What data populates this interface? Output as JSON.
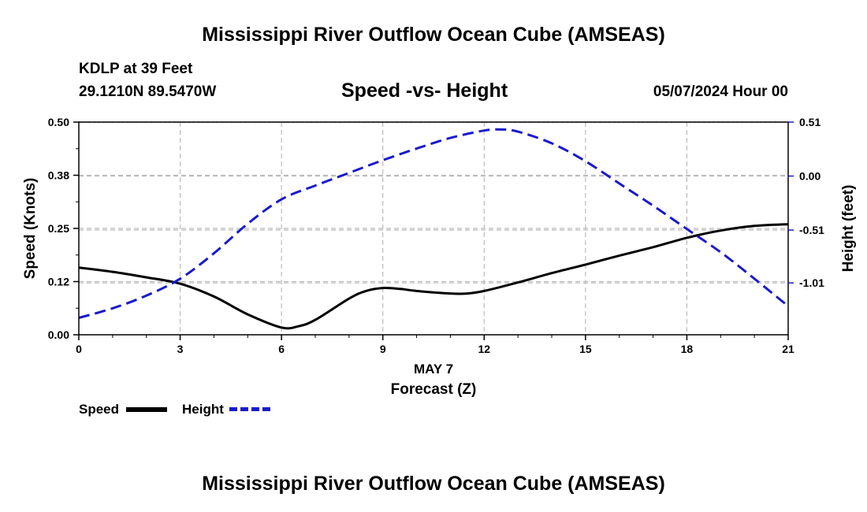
{
  "header": {
    "title": "Mississippi River Outflow Ocean Cube (AMSEAS)",
    "station": "KDLP at 39 Feet",
    "coords": "29.1210N  89.5470W",
    "subtitle": "Speed -vs- Height",
    "datetime": "05/07/2024 Hour 00",
    "footer_title": "Mississippi River Outflow Ocean Cube (AMSEAS)"
  },
  "legend": {
    "speed_label": "Speed",
    "height_label": "Height"
  },
  "colors": {
    "speed": "#000000",
    "height": "#1a1acc",
    "grid": "#bbbbbb"
  },
  "chart_data": {
    "type": "line",
    "title": "Speed -vs- Height",
    "xlabel": "Forecast (Z)",
    "xlabel_date": "MAY 7",
    "ylabel": "Speed (Knots)",
    "y2label": "Height (feet)",
    "xlim": [
      0,
      21
    ],
    "ylim": [
      0,
      0.5
    ],
    "y2lim": [
      -1.5,
      0.51
    ],
    "x_ticks": [
      0,
      3,
      6,
      9,
      12,
      15,
      18,
      21
    ],
    "x_tick_labels": [
      "0",
      "3",
      "6",
      "9",
      "12",
      "15",
      "18",
      "21"
    ],
    "y_ticks": [
      0,
      0.125,
      0.25,
      0.375,
      0.5
    ],
    "y_tick_labels": [
      "0.00",
      "0.12",
      "0.25",
      "0.38",
      "0.50"
    ],
    "y2_ticks": [
      0.51,
      0.0,
      -0.51,
      -1.01
    ],
    "y2_tick_labels": [
      "0.51",
      "0.00",
      "-0.51",
      "-1.01"
    ],
    "series": [
      {
        "name": "Speed",
        "axis": "left",
        "style": "solid",
        "x": [
          0,
          1,
          2,
          3,
          4,
          5,
          6,
          6.5,
          7,
          8,
          8.5,
          9,
          9.5,
          10,
          11,
          11.5,
          12,
          13,
          14,
          15,
          16,
          17,
          18,
          19,
          20,
          21
        ],
        "values": [
          0.158,
          0.148,
          0.135,
          0.12,
          0.09,
          0.048,
          0.017,
          0.02,
          0.035,
          0.085,
          0.103,
          0.11,
          0.108,
          0.103,
          0.097,
          0.097,
          0.103,
          0.123,
          0.145,
          0.165,
          0.186,
          0.206,
          0.228,
          0.245,
          0.256,
          0.26
        ]
      },
      {
        "name": "Height",
        "axis": "right",
        "style": "dashed",
        "x": [
          0,
          1,
          2,
          3,
          4,
          5,
          6,
          7,
          8,
          9,
          10,
          11,
          12,
          12.5,
          13,
          14,
          15,
          16,
          17,
          18,
          19,
          20,
          21
        ],
        "values": [
          -1.34,
          -1.25,
          -1.13,
          -0.97,
          -0.73,
          -0.45,
          -0.22,
          -0.09,
          0.03,
          0.15,
          0.26,
          0.36,
          0.43,
          0.44,
          0.42,
          0.31,
          0.14,
          -0.07,
          -0.28,
          -0.5,
          -0.72,
          -0.97,
          -1.23
        ]
      }
    ]
  }
}
